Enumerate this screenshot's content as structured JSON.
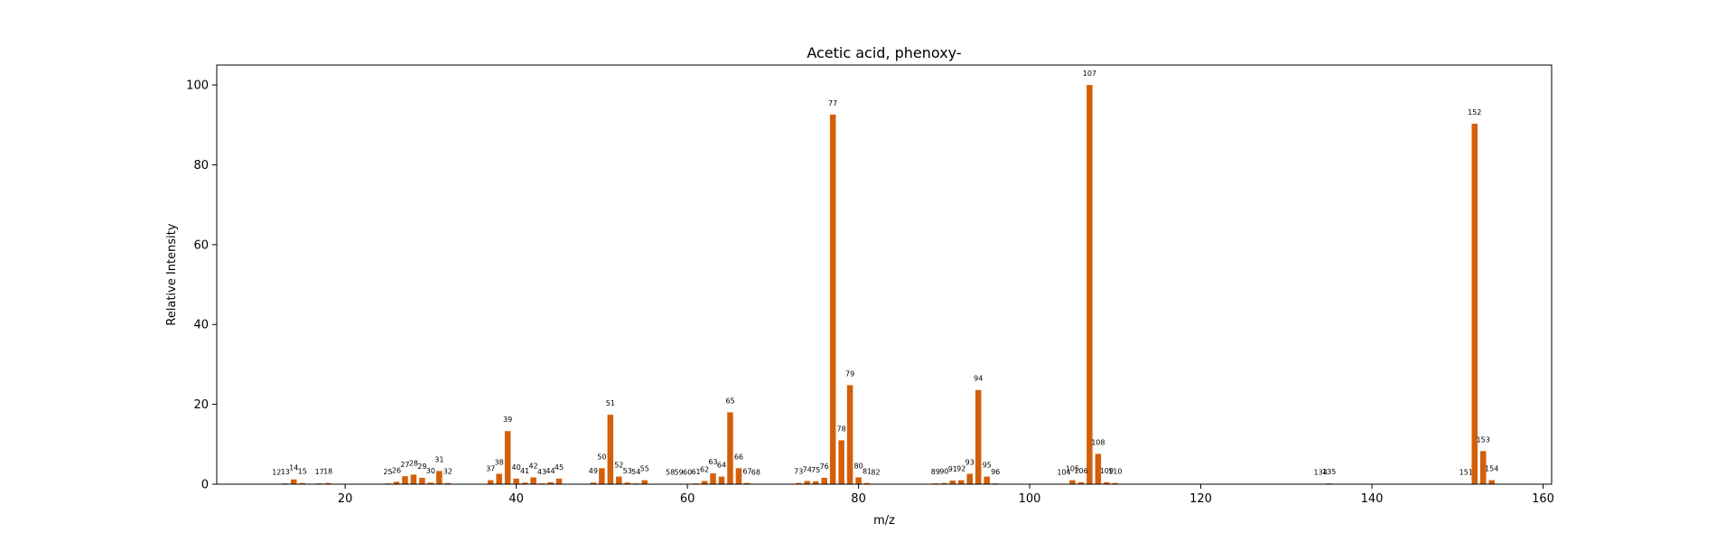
{
  "chart_data": {
    "type": "bar",
    "title": "Acetic acid, phenoxy-",
    "xlabel": "m/z",
    "ylabel": "Relative Intensity",
    "xlim": [
      5,
      161
    ],
    "ylim": [
      0,
      105
    ],
    "xticks": [
      20,
      40,
      60,
      80,
      100,
      120,
      140,
      160
    ],
    "yticks": [
      0,
      20,
      40,
      60,
      80,
      100
    ],
    "grid": false,
    "bar_color": "#d35f0a",
    "peaks": [
      {
        "mz": 12,
        "intensity": 0.1
      },
      {
        "mz": 13,
        "intensity": 0.2
      },
      {
        "mz": 14,
        "intensity": 1.2
      },
      {
        "mz": 15,
        "intensity": 0.3
      },
      {
        "mz": 17,
        "intensity": 0.2
      },
      {
        "mz": 18,
        "intensity": 0.3
      },
      {
        "mz": 25,
        "intensity": 0.2
      },
      {
        "mz": 26,
        "intensity": 0.6
      },
      {
        "mz": 27,
        "intensity": 2.0
      },
      {
        "mz": 28,
        "intensity": 2.4
      },
      {
        "mz": 29,
        "intensity": 1.6
      },
      {
        "mz": 30,
        "intensity": 0.4
      },
      {
        "mz": 31,
        "intensity": 3.3
      },
      {
        "mz": 32,
        "intensity": 0.3
      },
      {
        "mz": 37,
        "intensity": 1.0
      },
      {
        "mz": 38,
        "intensity": 2.6
      },
      {
        "mz": 39,
        "intensity": 13.3
      },
      {
        "mz": 40,
        "intensity": 1.4
      },
      {
        "mz": 41,
        "intensity": 0.4
      },
      {
        "mz": 42,
        "intensity": 1.7
      },
      {
        "mz": 43,
        "intensity": 0.2
      },
      {
        "mz": 44,
        "intensity": 0.5
      },
      {
        "mz": 45,
        "intensity": 1.4
      },
      {
        "mz": 49,
        "intensity": 0.4
      },
      {
        "mz": 50,
        "intensity": 4.0
      },
      {
        "mz": 51,
        "intensity": 17.4
      },
      {
        "mz": 52,
        "intensity": 1.9
      },
      {
        "mz": 53,
        "intensity": 0.4
      },
      {
        "mz": 54,
        "intensity": 0.2
      },
      {
        "mz": 55,
        "intensity": 1.0
      },
      {
        "mz": 58,
        "intensity": 0.1
      },
      {
        "mz": 59,
        "intensity": 0.1
      },
      {
        "mz": 60,
        "intensity": 0.1
      },
      {
        "mz": 61,
        "intensity": 0.2
      },
      {
        "mz": 62,
        "intensity": 0.8
      },
      {
        "mz": 63,
        "intensity": 2.7
      },
      {
        "mz": 64,
        "intensity": 1.9
      },
      {
        "mz": 65,
        "intensity": 18.0
      },
      {
        "mz": 66,
        "intensity": 4.0
      },
      {
        "mz": 67,
        "intensity": 0.3
      },
      {
        "mz": 68,
        "intensity": 0.1
      },
      {
        "mz": 73,
        "intensity": 0.3
      },
      {
        "mz": 74,
        "intensity": 0.8
      },
      {
        "mz": 75,
        "intensity": 0.7
      },
      {
        "mz": 76,
        "intensity": 1.6
      },
      {
        "mz": 77,
        "intensity": 92.6
      },
      {
        "mz": 78,
        "intensity": 11.0
      },
      {
        "mz": 79,
        "intensity": 24.8
      },
      {
        "mz": 80,
        "intensity": 1.7
      },
      {
        "mz": 81,
        "intensity": 0.3
      },
      {
        "mz": 82,
        "intensity": 0.1
      },
      {
        "mz": 89,
        "intensity": 0.2
      },
      {
        "mz": 90,
        "intensity": 0.3
      },
      {
        "mz": 91,
        "intensity": 0.9
      },
      {
        "mz": 92,
        "intensity": 1.0
      },
      {
        "mz": 93,
        "intensity": 2.6
      },
      {
        "mz": 94,
        "intensity": 23.6
      },
      {
        "mz": 95,
        "intensity": 1.9
      },
      {
        "mz": 96,
        "intensity": 0.2
      },
      {
        "mz": 104,
        "intensity": 0.1
      },
      {
        "mz": 105,
        "intensity": 1.0
      },
      {
        "mz": 106,
        "intensity": 0.5
      },
      {
        "mz": 107,
        "intensity": 100.0
      },
      {
        "mz": 108,
        "intensity": 7.6
      },
      {
        "mz": 109,
        "intensity": 0.5
      },
      {
        "mz": 110,
        "intensity": 0.3
      },
      {
        "mz": 134,
        "intensity": 0.1
      },
      {
        "mz": 135,
        "intensity": 0.2
      },
      {
        "mz": 151,
        "intensity": 0.1
      },
      {
        "mz": 152,
        "intensity": 90.3
      },
      {
        "mz": 153,
        "intensity": 8.3
      },
      {
        "mz": 154,
        "intensity": 1.0
      }
    ]
  }
}
